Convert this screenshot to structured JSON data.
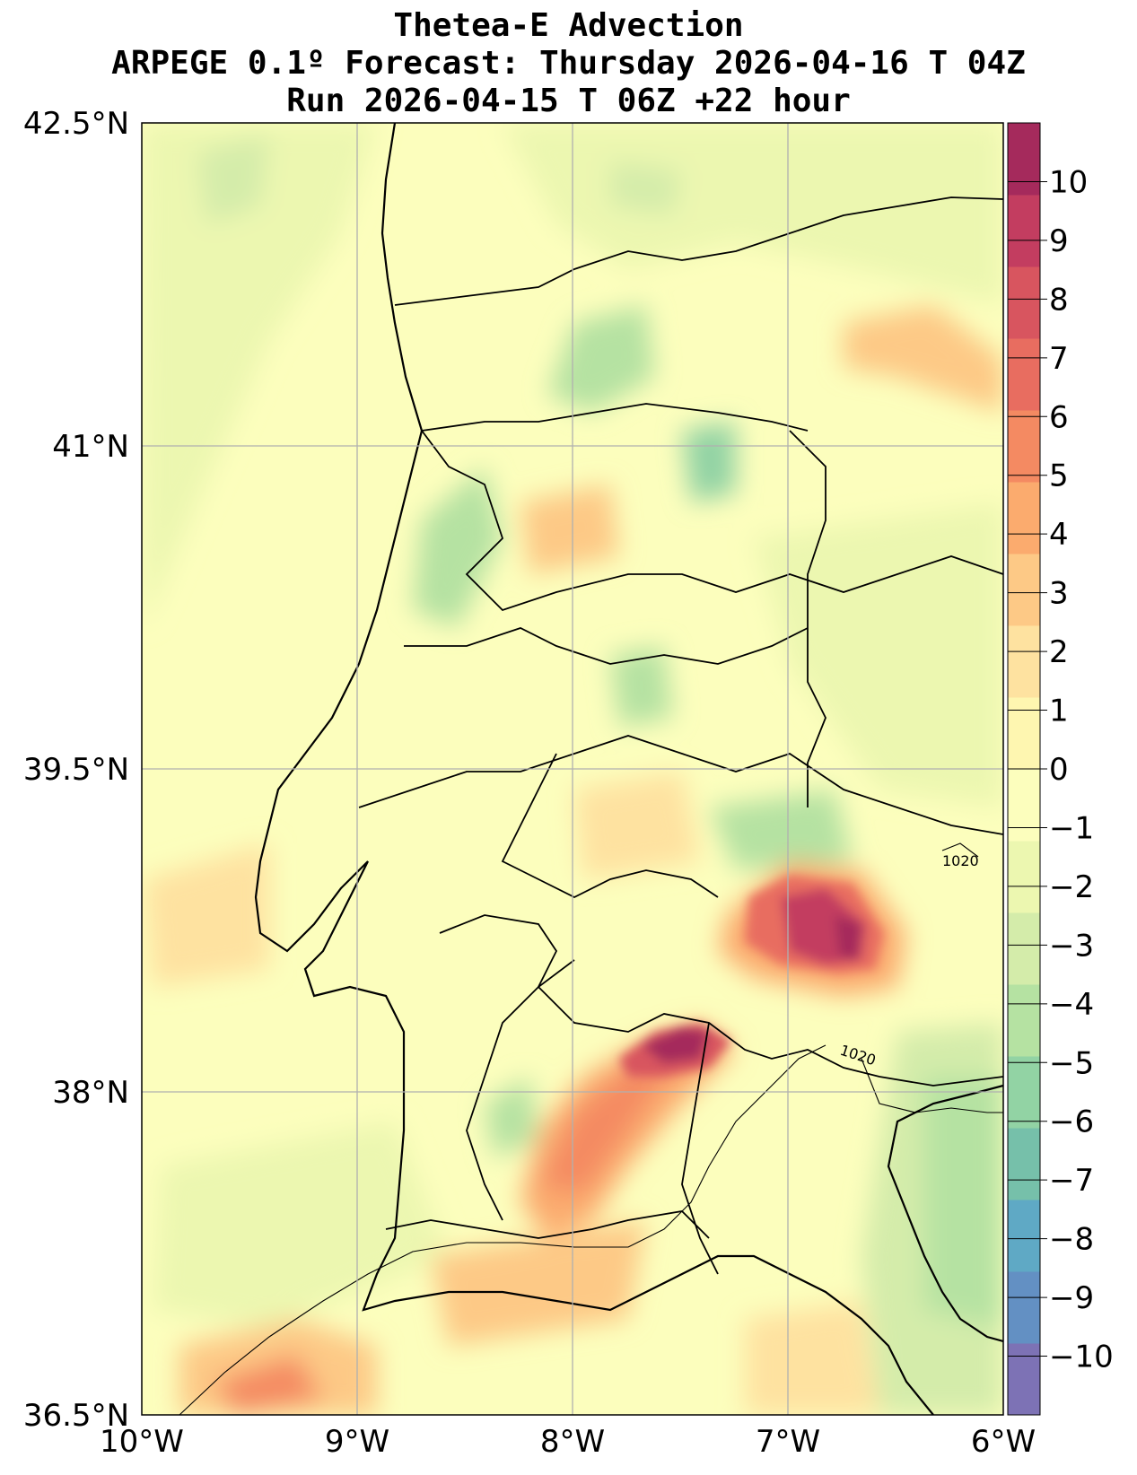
{
  "title": {
    "line1": "Thetea-E Advection",
    "line2": "ARPEGE 0.1º Forecast: Thursday 2026-04-16 T 04Z",
    "line3": "Run 2026-04-15 T 06Z +22 hour"
  },
  "map": {
    "lon_range": [
      -10,
      -6
    ],
    "lat_range": [
      36.5,
      42.5
    ],
    "lat_labels": [
      "42.5°N",
      "41°N",
      "39.5°N",
      "38°N",
      "36.5°N"
    ],
    "lon_labels": [
      "10°W",
      "9°W",
      "8°W",
      "7°W",
      "6°W"
    ],
    "isobar_labels": [
      "1020",
      "1020"
    ],
    "gridlines": true
  },
  "colorbar": {
    "ticks": [
      "10",
      "9",
      "8",
      "7",
      "6",
      "5",
      "4",
      "3",
      "2",
      "1",
      "0",
      "−1",
      "−2",
      "−3",
      "−4",
      "−5",
      "−6",
      "−7",
      "−8",
      "−9",
      "−10"
    ],
    "range": [
      -11,
      11
    ],
    "colors": [
      "#7d72b5",
      "#6390c3",
      "#5fa9c5",
      "#76c0aa",
      "#92d3a4",
      "#b5e2a2",
      "#d4ecaa",
      "#ecf7b0",
      "#fcfebd",
      "#fef6b0",
      "#fee2a0",
      "#fdc986",
      "#fbab6e",
      "#f48a62",
      "#e86d60",
      "#d8555f",
      "#c33d60",
      "#a52a5c"
    ]
  }
}
